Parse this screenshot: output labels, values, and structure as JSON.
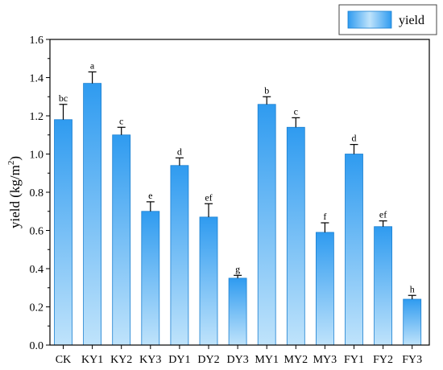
{
  "chart_data": {
    "type": "bar",
    "categories": [
      "CK",
      "KY1",
      "KY2",
      "KY3",
      "DY1",
      "DY2",
      "DY3",
      "MY1",
      "MY2",
      "MY3",
      "FY1",
      "FY2",
      "FY3"
    ],
    "series": [
      {
        "name": "yield",
        "values": [
          1.18,
          1.37,
          1.1,
          0.7,
          0.94,
          0.67,
          0.35,
          1.26,
          1.14,
          0.59,
          1.0,
          0.62,
          0.24
        ],
        "errors": [
          0.08,
          0.06,
          0.04,
          0.05,
          0.04,
          0.07,
          0.015,
          0.04,
          0.05,
          0.05,
          0.05,
          0.03,
          0.02
        ],
        "significance": [
          "bc",
          "a",
          "c",
          "e",
          "d",
          "ef",
          "g",
          "b",
          "c",
          "f",
          "d",
          "ef",
          "h"
        ]
      }
    ],
    "ylabel": "yield (kg/m",
    "ylabel_superscript": "2",
    "ylabel_suffix": ")",
    "ylim": [
      0.0,
      1.6
    ],
    "yticks": [
      "0.0",
      "0.2",
      "0.4",
      "0.6",
      "0.8",
      "1.0",
      "1.2",
      "1.4",
      "1.6"
    ],
    "legend_position": "top-right",
    "grid": false,
    "colors": {
      "bar_top": "#2f9bf0",
      "bar_bottom": "#bfe3fb",
      "error_bar": "#000000"
    }
  }
}
